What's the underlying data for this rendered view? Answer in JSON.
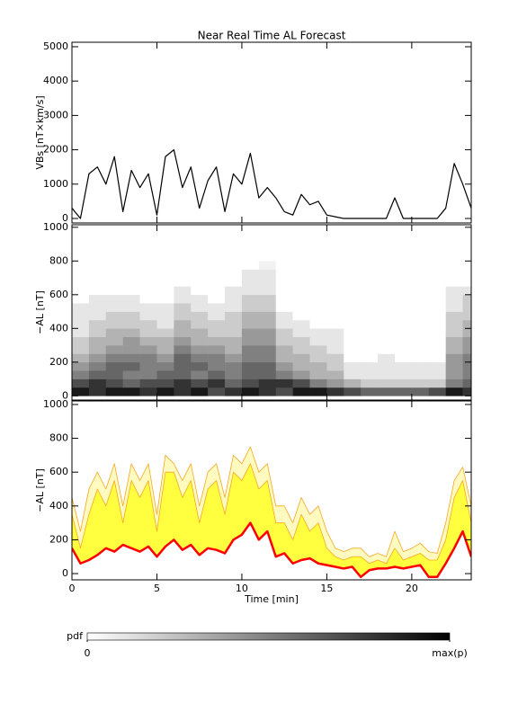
{
  "chart_data": [
    {
      "type": "line",
      "title": "Near Real Time AL Forecast",
      "ylabel": "VBs [nT×km/s]",
      "x": [
        0,
        0.5,
        1,
        1.5,
        2,
        2.5,
        3,
        3.5,
        4,
        4.5,
        5,
        5.5,
        6,
        6.5,
        7,
        7.5,
        8,
        8.5,
        9,
        9.5,
        10,
        10.5,
        11,
        11.5,
        12,
        12.5,
        13,
        13.5,
        14,
        14.5,
        15,
        15.5,
        16,
        16.5,
        17,
        17.5,
        18,
        18.5,
        19,
        19.5,
        20,
        20.5,
        21,
        21.5,
        22,
        22.5,
        23,
        23.5
      ],
      "series": [
        {
          "color": "#000000",
          "values": [
            300,
            0,
            1300,
            1500,
            1000,
            1800,
            200,
            1400,
            900,
            1300,
            100,
            1800,
            2000,
            900,
            1500,
            300,
            1100,
            1500,
            200,
            1300,
            1000,
            1900,
            600,
            900,
            600,
            200,
            100,
            700,
            400,
            500,
            100,
            50,
            0,
            0,
            0,
            0,
            0,
            0,
            600,
            0,
            0,
            0,
            0,
            0,
            300,
            1600,
            1000,
            300
          ]
        }
      ],
      "xlim": [
        0,
        23.5
      ],
      "xticks": [
        0,
        5,
        10,
        15,
        20
      ],
      "show_xtick_labels": false,
      "ylim": [
        -130,
        5130
      ],
      "yticks": [
        0,
        1000,
        2000,
        3000,
        4000,
        5000
      ]
    },
    {
      "type": "heatmap",
      "ylabel": "−AL [nT]",
      "xbins": [
        0,
        1,
        2,
        3,
        4,
        5,
        6,
        7,
        8,
        9,
        10,
        11,
        12,
        13,
        14,
        15,
        16,
        17,
        18,
        19,
        20,
        21,
        22,
        23,
        23.5
      ],
      "ybins": [
        0,
        50,
        100,
        150,
        200,
        250,
        300,
        350,
        400,
        450,
        500,
        550,
        600,
        650,
        700,
        750,
        800
      ],
      "values": [
        [
          0.9,
          0.8,
          0.9,
          0.9,
          0.8,
          0.9,
          0.8,
          0.9,
          0.7,
          0.8,
          0.9,
          0.8,
          0.7,
          0.9,
          0.9,
          0.8,
          0.7,
          0.6,
          0.6,
          0.6,
          0.6,
          0.7,
          0.9,
          0.8
        ],
        [
          0.7,
          0.8,
          0.7,
          0.6,
          0.7,
          0.7,
          0.8,
          0.7,
          0.8,
          0.6,
          0.7,
          0.8,
          0.8,
          0.7,
          0.5,
          0.4,
          0.3,
          0.2,
          0.2,
          0.2,
          0.2,
          0.2,
          0.5,
          0.6
        ],
        [
          0.5,
          0.6,
          0.6,
          0.5,
          0.5,
          0.6,
          0.6,
          0.5,
          0.6,
          0.5,
          0.6,
          0.6,
          0.5,
          0.4,
          0.3,
          0.3,
          0.1,
          0.1,
          0.1,
          0.1,
          0.1,
          0.1,
          0.4,
          0.5
        ],
        [
          0.4,
          0.5,
          0.6,
          0.6,
          0.5,
          0.5,
          0.6,
          0.6,
          0.5,
          0.5,
          0.6,
          0.6,
          0.4,
          0.3,
          0.3,
          0.2,
          0.1,
          0.1,
          0.1,
          0.1,
          0.1,
          0.1,
          0.4,
          0.5
        ],
        [
          0.3,
          0.4,
          0.5,
          0.5,
          0.5,
          0.4,
          0.6,
          0.5,
          0.5,
          0.4,
          0.5,
          0.5,
          0.3,
          0.3,
          0.2,
          0.2,
          0,
          0,
          0.1,
          0,
          0,
          0,
          0.4,
          0.5
        ],
        [
          0.2,
          0.3,
          0.4,
          0.4,
          0.4,
          0.3,
          0.5,
          0.4,
          0.4,
          0.3,
          0.5,
          0.5,
          0.3,
          0.2,
          0.2,
          0.1,
          0,
          0,
          0,
          0,
          0,
          0,
          0.3,
          0.4
        ],
        [
          0.2,
          0.3,
          0.3,
          0.4,
          0.3,
          0.3,
          0.4,
          0.3,
          0.3,
          0.3,
          0.4,
          0.4,
          0.2,
          0.2,
          0.1,
          0.1,
          0,
          0,
          0,
          0,
          0,
          0,
          0.3,
          0.4
        ],
        [
          0.1,
          0.2,
          0.3,
          0.3,
          0.2,
          0.2,
          0.3,
          0.3,
          0.2,
          0.2,
          0.4,
          0.4,
          0.2,
          0.1,
          0.1,
          0.1,
          0,
          0,
          0,
          0,
          0,
          0,
          0.2,
          0.3
        ],
        [
          0.1,
          0.2,
          0.2,
          0.2,
          0.2,
          0.1,
          0.3,
          0.2,
          0.2,
          0.2,
          0.3,
          0.3,
          0.1,
          0.1,
          0,
          0,
          0,
          0,
          0,
          0,
          0,
          0,
          0.2,
          0.3
        ],
        [
          0.1,
          0.1,
          0.2,
          0.2,
          0.1,
          0.1,
          0.2,
          0.2,
          0.1,
          0.2,
          0.3,
          0.3,
          0.1,
          0,
          0,
          0,
          0,
          0,
          0,
          0,
          0,
          0,
          0.2,
          0.2
        ],
        [
          0.1,
          0.1,
          0.1,
          0.1,
          0.1,
          0.1,
          0.2,
          0.1,
          0.1,
          0.1,
          0.2,
          0.2,
          0,
          0,
          0,
          0,
          0,
          0,
          0,
          0,
          0,
          0,
          0.1,
          0.2
        ],
        [
          0,
          0.1,
          0.1,
          0.1,
          0,
          0,
          0.1,
          0.1,
          0,
          0.1,
          0.2,
          0.2,
          0,
          0,
          0,
          0,
          0,
          0,
          0,
          0,
          0,
          0,
          0.1,
          0.2
        ],
        [
          0,
          0,
          0,
          0,
          0,
          0,
          0.1,
          0,
          0,
          0.1,
          0.1,
          0.1,
          0,
          0,
          0,
          0,
          0,
          0,
          0,
          0,
          0,
          0,
          0.1,
          0.1
        ],
        [
          0,
          0,
          0,
          0,
          0,
          0,
          0,
          0,
          0,
          0,
          0.1,
          0.1,
          0,
          0,
          0,
          0,
          0,
          0,
          0,
          0,
          0,
          0,
          0,
          0
        ],
        [
          0,
          0,
          0,
          0,
          0,
          0,
          0,
          0,
          0,
          0,
          0.1,
          0.1,
          0,
          0,
          0,
          0,
          0,
          0,
          0,
          0,
          0,
          0,
          0,
          0
        ],
        [
          0,
          0,
          0,
          0,
          0,
          0,
          0,
          0,
          0,
          0,
          0,
          0.05,
          0,
          0,
          0,
          0,
          0,
          0,
          0,
          0,
          0,
          0,
          0,
          0
        ]
      ],
      "colorbar": {
        "label": "pdf",
        "ticks": [
          0,
          {
            "value": 1,
            "label": "max(p)"
          }
        ]
      },
      "xlim": [
        0,
        23.5
      ],
      "xticks": [
        0,
        5,
        10,
        15,
        20
      ],
      "show_xtick_labels": false,
      "ylim": [
        -25,
        1015
      ],
      "yticks": [
        0,
        200,
        400,
        600,
        800,
        1000
      ]
    },
    {
      "type": "line",
      "ylabel": "−AL [nT]",
      "xlabel": "Time [min]",
      "x": [
        0,
        0.5,
        1,
        1.5,
        2,
        2.5,
        3,
        3.5,
        4,
        4.5,
        5,
        5.5,
        6,
        6.5,
        7,
        7.5,
        8,
        8.5,
        9,
        9.5,
        10,
        10.5,
        11,
        11.5,
        12,
        12.5,
        13,
        13.5,
        14,
        14.5,
        15,
        15.5,
        16,
        16.5,
        17,
        17.5,
        18,
        18.5,
        19,
        19.5,
        20,
        20.5,
        21,
        21.5,
        22,
        22.5,
        23,
        23.5
      ],
      "series": [
        {
          "color": "#f5a623",
          "fill": "#fffbc0",
          "values": [
            450,
            250,
            500,
            600,
            500,
            650,
            400,
            650,
            550,
            650,
            350,
            700,
            650,
            550,
            650,
            400,
            600,
            650,
            450,
            700,
            650,
            750,
            600,
            650,
            400,
            400,
            300,
            450,
            350,
            400,
            250,
            150,
            130,
            150,
            150,
            100,
            120,
            100,
            250,
            130,
            150,
            180,
            130,
            120,
            300,
            550,
            630,
            400
          ]
        },
        {
          "color": "#f5a623",
          "fill": "#ffff40",
          "values": [
            350,
            150,
            350,
            500,
            400,
            550,
            300,
            550,
            450,
            550,
            250,
            600,
            600,
            450,
            550,
            300,
            500,
            550,
            350,
            600,
            550,
            650,
            500,
            550,
            300,
            300,
            200,
            350,
            250,
            300,
            150,
            100,
            80,
            100,
            100,
            60,
            80,
            60,
            150,
            80,
            100,
            120,
            80,
            80,
            200,
            450,
            550,
            300
          ]
        },
        {
          "color": "#ff0000",
          "values": [
            150,
            60,
            80,
            110,
            150,
            130,
            170,
            150,
            130,
            160,
            100,
            160,
            200,
            140,
            170,
            110,
            150,
            140,
            120,
            200,
            230,
            300,
            200,
            250,
            100,
            120,
            60,
            80,
            90,
            60,
            50,
            40,
            30,
            40,
            -20,
            20,
            30,
            30,
            40,
            30,
            40,
            50,
            -20,
            -20,
            60,
            150,
            250,
            100
          ]
        }
      ],
      "xlim": [
        0,
        23.5
      ],
      "xticks": [
        0,
        5,
        10,
        15,
        20
      ],
      "show_xtick_labels": true,
      "ylim": [
        -37,
        1021
      ],
      "yticks": [
        0,
        200,
        400,
        600,
        800,
        1000
      ]
    }
  ]
}
